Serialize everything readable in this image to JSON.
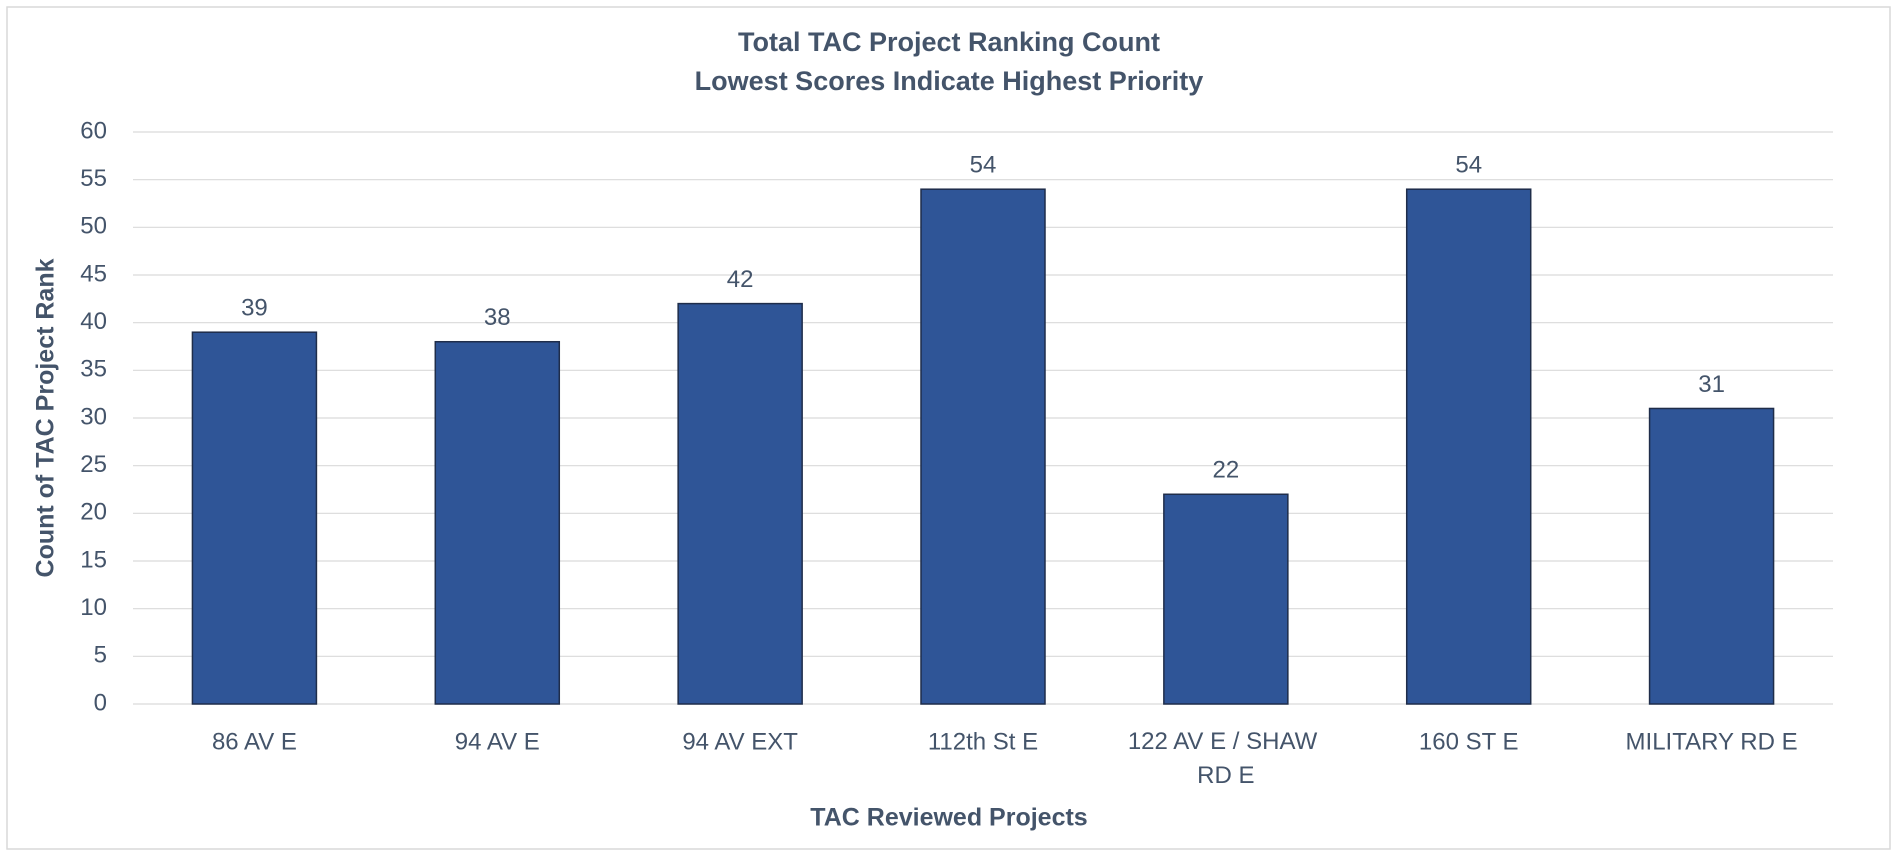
{
  "chart_data": {
    "type": "bar",
    "title": "Total TAC Project Ranking Count",
    "subtitle": "Lowest Scores Indicate Highest Priority",
    "x_label": "TAC Reviewed Projects",
    "y_label": "Count of TAC Project Rank",
    "categories": [
      "86 AV E",
      "94 AV E",
      "94 AV EXT",
      "112th St E",
      "122 AV E / SHAW RD E",
      "160 ST E",
      "MILITARY RD E"
    ],
    "values": [
      39,
      38,
      42,
      54,
      22,
      54,
      31
    ],
    "color": "#2f5597",
    "ylim": [
      0,
      60
    ],
    "yticks": [
      0,
      5,
      10,
      15,
      20,
      25,
      30,
      35,
      40,
      45,
      50,
      55,
      60
    ],
    "grid": true
  }
}
